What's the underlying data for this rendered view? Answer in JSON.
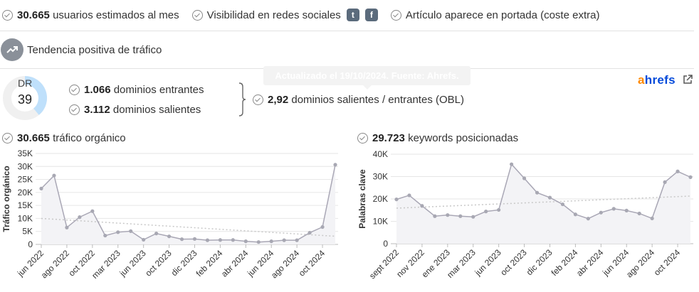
{
  "features": {
    "users_number": "30.665",
    "users_text": "usuarios estimados al mes",
    "social_text": "Visibilidad en redes sociales",
    "social_icons": [
      "twitter-icon",
      "facebook-icon"
    ],
    "twitter_glyph": "t",
    "facebook_glyph": "f",
    "frontpage_text": "Artículo aparece en portada (coste extra)"
  },
  "trend": {
    "text": "Tendencia positiva de tráfico"
  },
  "tooltip": {
    "text": "Actualizado el 19/10/2024. Fuente: Ahrefs."
  },
  "dr": {
    "label": "DR",
    "value": "39",
    "score": 39
  },
  "domains": {
    "incoming_number": "1.066",
    "incoming_text": "dominios entrantes",
    "outgoing_number": "3.112",
    "outgoing_text": "dominios salientes",
    "ratio_number": "2,92",
    "ratio_text": "dominios salientes / entrantes (OBL)"
  },
  "brand": {
    "prefix": "a",
    "rest": "hrefs"
  },
  "colors": {
    "accent_blue": "#bfe0fb",
    "line": "#a9a7b5",
    "ahrefs_orange": "#ff8800",
    "ahrefs_blue": "#054ada"
  },
  "traffic": {
    "header_number": "30.665",
    "header_text": "tráfico orgánico"
  },
  "keywords": {
    "header_number": "29.723",
    "header_text": "keywords posicionadas"
  },
  "chart_data": [
    {
      "type": "line",
      "ylabel": "Tráfico orgánico",
      "ylim": [
        0,
        35000
      ],
      "yticks": [
        0,
        5000,
        10000,
        15000,
        20000,
        25000,
        30000,
        35000
      ],
      "ytick_labels": [
        "0",
        "5K",
        "10K",
        "15K",
        "20K",
        "25K",
        "30K",
        "35K"
      ],
      "xtick_labels": [
        "jun 2022",
        "ago 2022",
        "oct 2022",
        "mar 2023",
        "jun 2023",
        "oct 2023",
        "dic 2023",
        "feb 2024",
        "abr 2024",
        "jun 2024",
        "ago 2024",
        "oct 2024"
      ],
      "xtick_index": [
        0,
        2,
        4,
        6,
        8,
        10,
        12,
        14,
        16,
        18,
        20,
        22
      ],
      "grid": true,
      "trendline": true,
      "values": [
        21500,
        26500,
        6500,
        10500,
        12800,
        3400,
        4700,
        5100,
        1800,
        4200,
        3100,
        2000,
        2100,
        1600,
        1700,
        1700,
        1200,
        900,
        1200,
        1600,
        1600,
        4500,
        6700,
        30665
      ]
    },
    {
      "type": "line",
      "ylabel": "Palabras clave",
      "ylim": [
        0,
        40000
      ],
      "yticks": [
        0,
        10000,
        20000,
        30000,
        40000
      ],
      "ytick_labels": [
        "0",
        "10K",
        "20K",
        "30K",
        "40K"
      ],
      "xtick_labels": [
        "sept 2022",
        "nov 2022",
        "ene 2023",
        "mar 2023",
        "jun 2023",
        "oct 2023",
        "dic 2023",
        "feb 2024",
        "abr 2024",
        "jun 2024",
        "ago 2024",
        "oct 2024"
      ],
      "xtick_index": [
        0,
        2,
        4,
        6,
        8,
        10,
        12,
        14,
        16,
        18,
        20,
        22
      ],
      "grid": true,
      "trendline": true,
      "values": [
        19800,
        21600,
        16900,
        12300,
        12800,
        12300,
        12000,
        14400,
        15100,
        35500,
        29200,
        22800,
        20600,
        17600,
        13100,
        11200,
        13900,
        15600,
        14800,
        13500,
        11300,
        27500,
        32300,
        29723
      ]
    }
  ]
}
